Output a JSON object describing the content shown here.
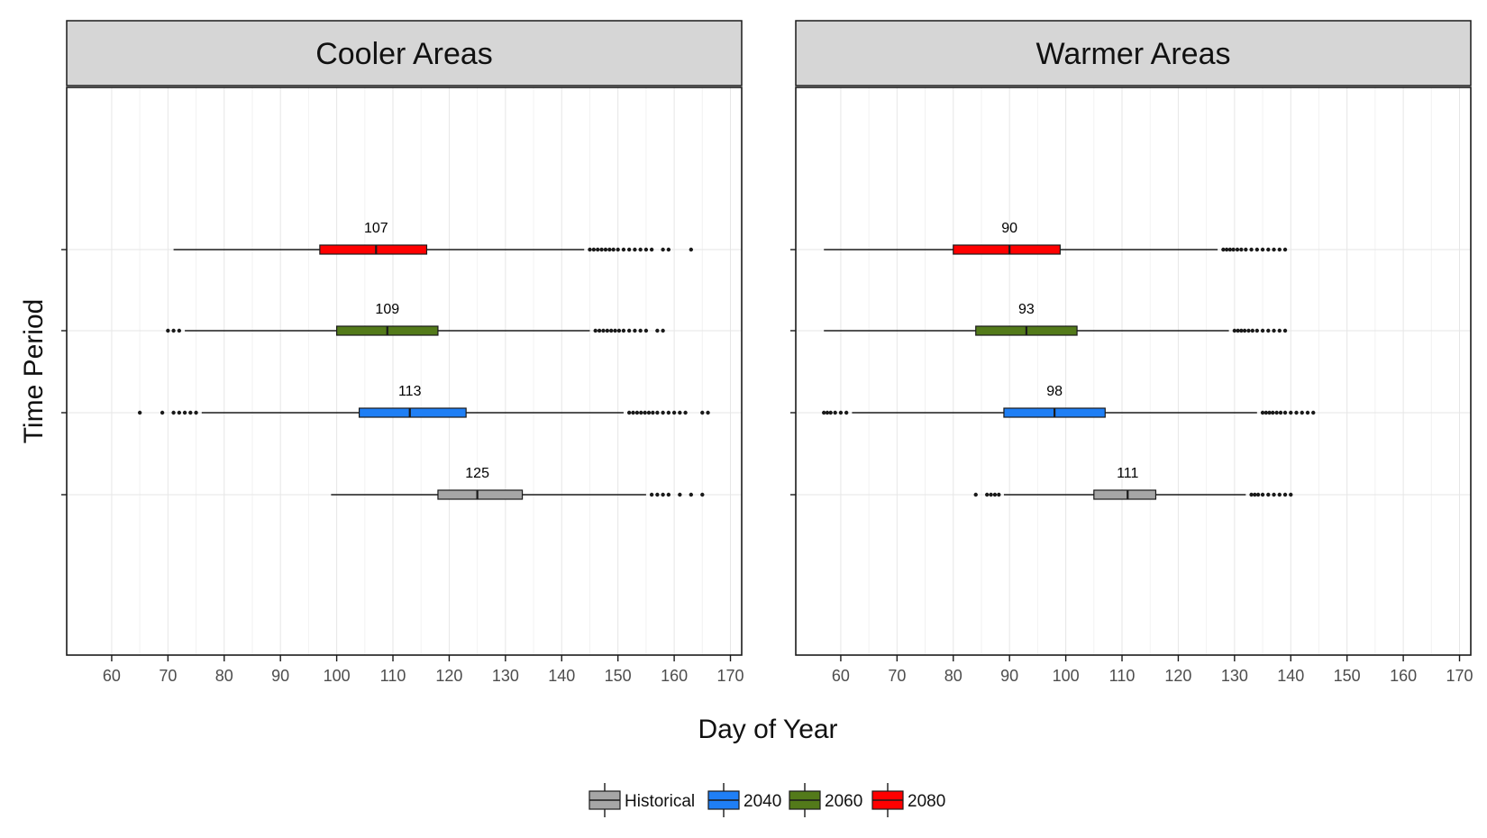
{
  "chart_data": {
    "type": "boxplot",
    "xlabel": "Day of Year",
    "ylabel": "Time Period",
    "xlim": [
      52,
      172
    ],
    "xticks": [
      60,
      70,
      80,
      90,
      100,
      110,
      120,
      130,
      140,
      150,
      160,
      170
    ],
    "grid": true,
    "legend_position": "bottom",
    "legend": [
      {
        "name": "Historical",
        "color": "#a6a6a6"
      },
      {
        "name": "2040",
        "color": "#1f7ff5"
      },
      {
        "name": "2060",
        "color": "#537a1a"
      },
      {
        "name": "2080",
        "color": "#ff0000"
      }
    ],
    "categories": [
      "Historical",
      "2040",
      "2060",
      "2080"
    ],
    "panels": [
      {
        "title": "Cooler Areas",
        "boxes": [
          {
            "period": "Historical",
            "whisker_low": 99,
            "q1": 118,
            "median": 125,
            "q3": 133,
            "whisker_high": 155,
            "label": "125",
            "outliers": [
              156,
              157,
              158,
              159,
              161,
              163,
              165
            ]
          },
          {
            "period": "2040",
            "whisker_low": 76,
            "q1": 104,
            "median": 113,
            "q3": 123,
            "whisker_high": 151,
            "label": "113",
            "outliers": [
              65,
              69,
              71,
              72,
              73,
              74,
              75,
              152,
              152.7,
              153.4,
              154.1,
              154.8,
              155.5,
              156.2,
              157,
              158,
              159,
              160,
              161,
              162,
              165,
              166
            ]
          },
          {
            "period": "2060",
            "whisker_low": 73,
            "q1": 100,
            "median": 109,
            "q3": 118,
            "whisker_high": 145,
            "label": "109",
            "outliers": [
              70,
              71,
              72,
              146,
              146.7,
              147.4,
              148.1,
              148.8,
              149.5,
              150.2,
              151,
              152,
              153,
              154,
              155,
              157,
              158
            ]
          },
          {
            "period": "2080",
            "whisker_low": 71,
            "q1": 97,
            "median": 107,
            "q3": 116,
            "whisker_high": 144,
            "label": "107",
            "outliers": [
              145,
              145.7,
              146.4,
              147.1,
              147.8,
              148.5,
              149.2,
              150,
              151,
              152,
              153,
              154,
              155,
              156,
              158,
              159,
              163
            ]
          }
        ]
      },
      {
        "title": "Warmer Areas",
        "boxes": [
          {
            "period": "Historical",
            "whisker_low": 89,
            "q1": 105,
            "median": 111,
            "q3": 116,
            "whisker_high": 132,
            "label": "111",
            "outliers": [
              84,
              86,
              86.7,
              87.4,
              88.1,
              133,
              133.6,
              134.2,
              135,
              136,
              137,
              138,
              139,
              140
            ]
          },
          {
            "period": "2040",
            "whisker_low": 62,
            "q1": 89,
            "median": 98,
            "q3": 107,
            "whisker_high": 134,
            "label": "98",
            "outliers": [
              57,
              57.6,
              58.2,
              59,
              60,
              61,
              135,
              135.6,
              136.2,
              136.8,
              137.5,
              138.2,
              139,
              140,
              141,
              142,
              143,
              144
            ]
          },
          {
            "period": "2060",
            "whisker_low": 57,
            "q1": 84,
            "median": 93,
            "q3": 102,
            "whisker_high": 129,
            "label": "93",
            "outliers": [
              130,
              130.6,
              131.2,
              131.8,
              132.5,
              133.2,
              134,
              135,
              136,
              137,
              138,
              139
            ]
          },
          {
            "period": "2080",
            "whisker_low": 57,
            "q1": 80,
            "median": 90,
            "q3": 99,
            "whisker_high": 127,
            "label": "90",
            "outliers": [
              128,
              128.6,
              129.2,
              129.8,
              130.5,
              131.2,
              132,
              133,
              134,
              135,
              136,
              137,
              138,
              139
            ]
          }
        ]
      }
    ]
  }
}
